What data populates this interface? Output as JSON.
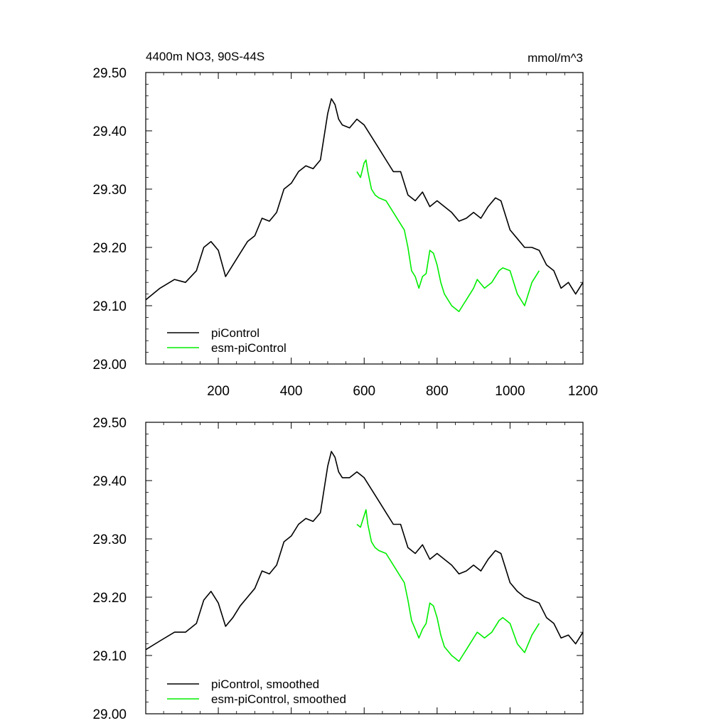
{
  "chart_data": [
    {
      "type": "line",
      "title": "4400m NO3, 90S-44S",
      "units": "mmol/m^3",
      "xlim": [
        1,
        1200
      ],
      "ylim": [
        29.0,
        29.5
      ],
      "x_ticks": [
        "200",
        "400",
        "600",
        "800",
        "1000",
        "1200"
      ],
      "x_tick_values": [
        200,
        400,
        600,
        800,
        1000,
        1200
      ],
      "y_ticks": [
        "29.00",
        "29.10",
        "29.20",
        "29.30",
        "29.40",
        "29.50"
      ],
      "y_tick_values": [
        29.0,
        29.1,
        29.2,
        29.3,
        29.4,
        29.5
      ],
      "legend_position": "bottom-left",
      "series": [
        {
          "name": "piControl",
          "color": "#000000",
          "x": [
            1,
            40,
            80,
            110,
            140,
            160,
            180,
            200,
            220,
            240,
            260,
            280,
            300,
            320,
            340,
            360,
            380,
            400,
            420,
            440,
            460,
            480,
            500,
            510,
            520,
            530,
            540,
            560,
            580,
            600,
            620,
            640,
            660,
            680,
            700,
            720,
            740,
            760,
            780,
            800,
            820,
            840,
            860,
            880,
            900,
            920,
            940,
            960,
            975,
            990,
            1000,
            1020,
            1040,
            1060,
            1080,
            1100,
            1120,
            1140,
            1160,
            1180,
            1200
          ],
          "y": [
            29.11,
            29.13,
            29.145,
            29.14,
            29.16,
            29.2,
            29.21,
            29.195,
            29.15,
            29.17,
            29.19,
            29.21,
            29.22,
            29.25,
            29.245,
            29.26,
            29.3,
            29.31,
            29.33,
            29.34,
            29.335,
            29.35,
            29.43,
            29.455,
            29.445,
            29.42,
            29.41,
            29.405,
            29.42,
            29.41,
            29.39,
            29.37,
            29.35,
            29.33,
            29.33,
            29.29,
            29.28,
            29.295,
            29.27,
            29.28,
            29.27,
            29.26,
            29.245,
            29.25,
            29.26,
            29.25,
            29.27,
            29.285,
            29.28,
            29.25,
            29.23,
            29.215,
            29.2,
            29.2,
            29.195,
            29.17,
            29.16,
            29.13,
            29.14,
            29.12,
            29.14
          ]
        },
        {
          "name": "esm-piControl",
          "color": "#00ee00",
          "x": [
            580,
            590,
            600,
            605,
            610,
            620,
            630,
            640,
            660,
            680,
            700,
            710,
            720,
            730,
            740,
            750,
            760,
            770,
            780,
            790,
            800,
            810,
            820,
            840,
            860,
            870,
            880,
            900,
            910,
            930,
            950,
            970,
            980,
            1000,
            1020,
            1040,
            1060,
            1080
          ],
          "y": [
            29.33,
            29.32,
            29.345,
            29.35,
            29.33,
            29.3,
            29.29,
            29.285,
            29.28,
            29.26,
            29.24,
            29.23,
            29.2,
            29.16,
            29.15,
            29.13,
            29.15,
            29.155,
            29.195,
            29.19,
            29.17,
            29.14,
            29.12,
            29.1,
            29.09,
            29.1,
            29.11,
            29.13,
            29.145,
            29.13,
            29.14,
            29.16,
            29.165,
            29.16,
            29.12,
            29.1,
            29.14,
            29.16
          ]
        }
      ]
    },
    {
      "type": "line",
      "title": "",
      "xlim": [
        1,
        1200
      ],
      "ylim": [
        29.0,
        29.5
      ],
      "y_ticks": [
        "29.00",
        "29.10",
        "29.20",
        "29.30",
        "29.40",
        "29.50"
      ],
      "y_tick_values": [
        29.0,
        29.1,
        29.2,
        29.3,
        29.4,
        29.5
      ],
      "legend_position": "bottom-left",
      "series": [
        {
          "name": "piControl, smoothed",
          "color": "#000000",
          "x": [
            1,
            40,
            80,
            110,
            140,
            160,
            180,
            200,
            220,
            240,
            260,
            280,
            300,
            320,
            340,
            360,
            380,
            400,
            420,
            440,
            460,
            480,
            500,
            510,
            520,
            530,
            540,
            560,
            580,
            600,
            620,
            640,
            660,
            680,
            700,
            720,
            740,
            760,
            780,
            800,
            820,
            840,
            860,
            880,
            900,
            920,
            940,
            960,
            975,
            990,
            1000,
            1020,
            1040,
            1060,
            1080,
            1100,
            1120,
            1140,
            1160,
            1180,
            1200
          ],
          "y": [
            29.11,
            29.125,
            29.14,
            29.14,
            29.155,
            29.195,
            29.21,
            29.19,
            29.15,
            29.165,
            29.185,
            29.2,
            29.215,
            29.245,
            29.24,
            29.255,
            29.295,
            29.305,
            29.325,
            29.335,
            29.33,
            29.345,
            29.425,
            29.45,
            29.44,
            29.415,
            29.405,
            29.405,
            29.415,
            29.405,
            29.385,
            29.365,
            29.345,
            29.325,
            29.325,
            29.285,
            29.275,
            29.29,
            29.265,
            29.275,
            29.265,
            29.255,
            29.24,
            29.245,
            29.255,
            29.245,
            29.265,
            29.28,
            29.275,
            29.245,
            29.225,
            29.21,
            29.2,
            29.195,
            29.19,
            29.165,
            29.155,
            29.13,
            29.135,
            29.12,
            29.14
          ]
        },
        {
          "name": "esm-piControl, smoothed",
          "color": "#00ee00",
          "x": [
            580,
            590,
            600,
            605,
            610,
            620,
            630,
            640,
            660,
            680,
            700,
            710,
            720,
            730,
            740,
            750,
            760,
            770,
            780,
            790,
            800,
            810,
            820,
            840,
            860,
            870,
            880,
            900,
            910,
            930,
            950,
            970,
            980,
            1000,
            1020,
            1040,
            1060,
            1080
          ],
          "y": [
            29.325,
            29.32,
            29.34,
            29.35,
            29.325,
            29.295,
            29.285,
            29.28,
            29.275,
            29.255,
            29.235,
            29.225,
            29.195,
            29.16,
            29.145,
            29.13,
            29.145,
            29.155,
            29.19,
            29.185,
            29.165,
            29.135,
            29.115,
            29.1,
            29.09,
            29.1,
            29.11,
            29.13,
            29.14,
            29.13,
            29.14,
            29.16,
            29.165,
            29.155,
            29.12,
            29.105,
            29.135,
            29.155
          ]
        }
      ]
    }
  ]
}
